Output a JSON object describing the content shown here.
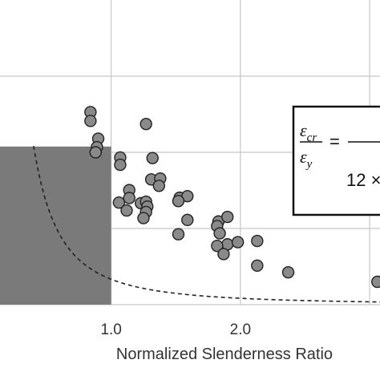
{
  "chart_data": {
    "type": "scatter",
    "xlabel": "Normalized Slenderness Ratio",
    "x_ticks": [
      {
        "value": 1.0,
        "label": "1.0"
      },
      {
        "value": 2.0,
        "label": "2.0"
      }
    ],
    "xlim": [
      0.14,
      3.08
    ],
    "ylim": [
      0.0,
      1.0
    ],
    "grid": true,
    "points": [
      {
        "x": 0.84,
        "y": 0.632
      },
      {
        "x": 0.84,
        "y": 0.603
      },
      {
        "x": 0.9,
        "y": 0.545
      },
      {
        "x": 0.89,
        "y": 0.517
      },
      {
        "x": 0.88,
        "y": 0.5
      },
      {
        "x": 1.07,
        "y": 0.483
      },
      {
        "x": 1.07,
        "y": 0.459
      },
      {
        "x": 1.27,
        "y": 0.593
      },
      {
        "x": 1.32,
        "y": 0.481
      },
      {
        "x": 1.31,
        "y": 0.411
      },
      {
        "x": 1.38,
        "y": 0.414
      },
      {
        "x": 1.37,
        "y": 0.39
      },
      {
        "x": 1.14,
        "y": 0.376
      },
      {
        "x": 1.06,
        "y": 0.335
      },
      {
        "x": 1.14,
        "y": 0.35
      },
      {
        "x": 1.23,
        "y": 0.333
      },
      {
        "x": 1.27,
        "y": 0.338
      },
      {
        "x": 1.28,
        "y": 0.322
      },
      {
        "x": 1.12,
        "y": 0.309
      },
      {
        "x": 1.27,
        "y": 0.304
      },
      {
        "x": 1.25,
        "y": 0.284
      },
      {
        "x": 1.53,
        "y": 0.351
      },
      {
        "x": 1.59,
        "y": 0.356
      },
      {
        "x": 1.52,
        "y": 0.34
      },
      {
        "x": 1.59,
        "y": 0.278
      },
      {
        "x": 1.52,
        "y": 0.231
      },
      {
        "x": 1.83,
        "y": 0.273
      },
      {
        "x": 1.82,
        "y": 0.258
      },
      {
        "x": 1.9,
        "y": 0.288
      },
      {
        "x": 1.84,
        "y": 0.234
      },
      {
        "x": 1.9,
        "y": 0.198
      },
      {
        "x": 1.98,
        "y": 0.205
      },
      {
        "x": 1.82,
        "y": 0.193
      },
      {
        "x": 1.87,
        "y": 0.166
      },
      {
        "x": 2.13,
        "y": 0.209
      },
      {
        "x": 2.13,
        "y": 0.128
      },
      {
        "x": 2.37,
        "y": 0.106
      },
      {
        "x": 3.06,
        "y": 0.075
      }
    ],
    "curve": {
      "style": "dashed",
      "form": "1/(12*x^2)"
    },
    "shaded_region": {
      "x_start": 0.14,
      "x_end": 1.0,
      "y_start": 0.0,
      "y_end": 0.519,
      "color": "#7a7a7a"
    },
    "annotation": {
      "numerator": "ε",
      "numerator_sub": "cr",
      "denominator": "ε",
      "denominator_sub": "y",
      "equals": "=",
      "denominator_right": "12 ×"
    },
    "colors": {
      "marker_fill": "#8a8a8a",
      "marker_edge": "#222222",
      "grid": "#c8c8c8",
      "curve": "#222222"
    }
  }
}
